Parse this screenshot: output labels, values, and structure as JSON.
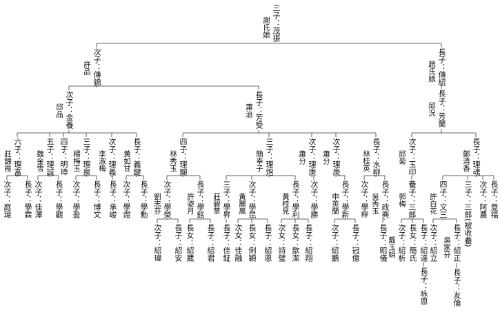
{
  "nodes": [
    {
      "label": "三子：茂振",
      "spouse": "謝氏娘"
    },
    {
      "label": "次子：傳錦",
      "spouse": "許品"
    },
    {
      "label": "長子：傳紹",
      "spouse": "趙氏娘"
    },
    {
      "label": "長子：芳蘭",
      "spouse": "邱況"
    },
    {
      "label": "次子：金養",
      "spouse": "邱品"
    },
    {
      "label": "長子：芳受",
      "spouse": "蕭治"
    },
    {
      "label": "六子：理富",
      "spouse": "莊錦霞"
    },
    {
      "label": "五子：理誠",
      "spouse": "魏金雪"
    },
    {
      "label": "四子：明璋"
    },
    {
      "label": "三子：理泉",
      "spouse": "楊梅玉"
    },
    {
      "label": "次子：理義",
      "spouse": "李淑梅"
    },
    {
      "label": "長子：義鍵",
      "spouse": "黃如甘"
    },
    {
      "label": "次子：庭瑋"
    },
    {
      "label": "長子：學霖"
    },
    {
      "label": "次子：佳澤"
    },
    {
      "label": "長子：學觀"
    },
    {
      "label": "次子：學盈"
    },
    {
      "label": "長子：博文"
    },
    {
      "label": "長子：承峻"
    },
    {
      "label": "次子：學煜"
    },
    {
      "label": "長子：學勳"
    },
    {
      "label": "四子：理顯",
      "spouse": "林秀玉"
    },
    {
      "label": "三子：理炮",
      "spouse": "簡幸子"
    },
    {
      "label": "次子：理庚",
      "spouse": "蕭分"
    },
    {
      "label": "次子：理庚",
      "spouse": "蕭分"
    },
    {
      "label": "長子：水柳",
      "spouse": "林桂英"
    },
    {
      "label": "次子：學榮",
      "spouse": "劉志芬"
    },
    {
      "label": "長子：學銘",
      "spouse": "許姿月"
    },
    {
      "label": "次子：紹瑋"
    },
    {
      "label": "長子：紹安"
    },
    {
      "label": "長女：紹葳"
    },
    {
      "label": "長子：紹君"
    },
    {
      "label": "三子：學昇",
      "spouse": "莊碧草"
    },
    {
      "label": "次子：學昆",
      "spouse": "黃麗鳳"
    },
    {
      "label": "長子：學利",
      "spouse": "黃桂見"
    },
    {
      "label": "長子：佳鉦"
    },
    {
      "label": "次女：佳融"
    },
    {
      "label": "長女：俐穎"
    },
    {
      "label": "長子：紹恩"
    },
    {
      "label": "次女：詩璧"
    },
    {
      "label": "長女：歆潔"
    },
    {
      "label": "長子：紹翔"
    },
    {
      "label": "次子：學勝"
    },
    {
      "label": "長子：學新",
      "spouse": "申英蘭"
    },
    {
      "label": "次子：紹鵬"
    },
    {
      "label": "長子：冠億"
    },
    {
      "label": "次子：學梓"
    },
    {
      "label": "長子：政興",
      "spouse": "吳秀玉"
    },
    {
      "label": "長子：昭儀"
    },
    {
      "label": "次子：玉印",
      "spouse": "邱菊"
    },
    {
      "label": "長子：理魂",
      "spouse": "鄭清香"
    },
    {
      "label": "養子：三郎",
      "spouse": "郭梅"
    },
    {
      "label": "次子：紹析",
      "spouse": "戴玉娟"
    },
    {
      "label": "長女：簡氏"
    },
    {
      "label": "長子：紹達"
    },
    {
      "label": "長子：咏恩"
    },
    {
      "label": "四子：文三",
      "spouse": "許白花"
    },
    {
      "label": "三子：三郎(被收養)"
    },
    {
      "label": "次子：阿農"
    },
    {
      "label": "長子：登福"
    },
    {
      "label": "次子：紹立"
    },
    {
      "label": "長子：紹正",
      "spouse": "吳家芬"
    },
    {
      "label": "長子：友倫"
    }
  ]
}
